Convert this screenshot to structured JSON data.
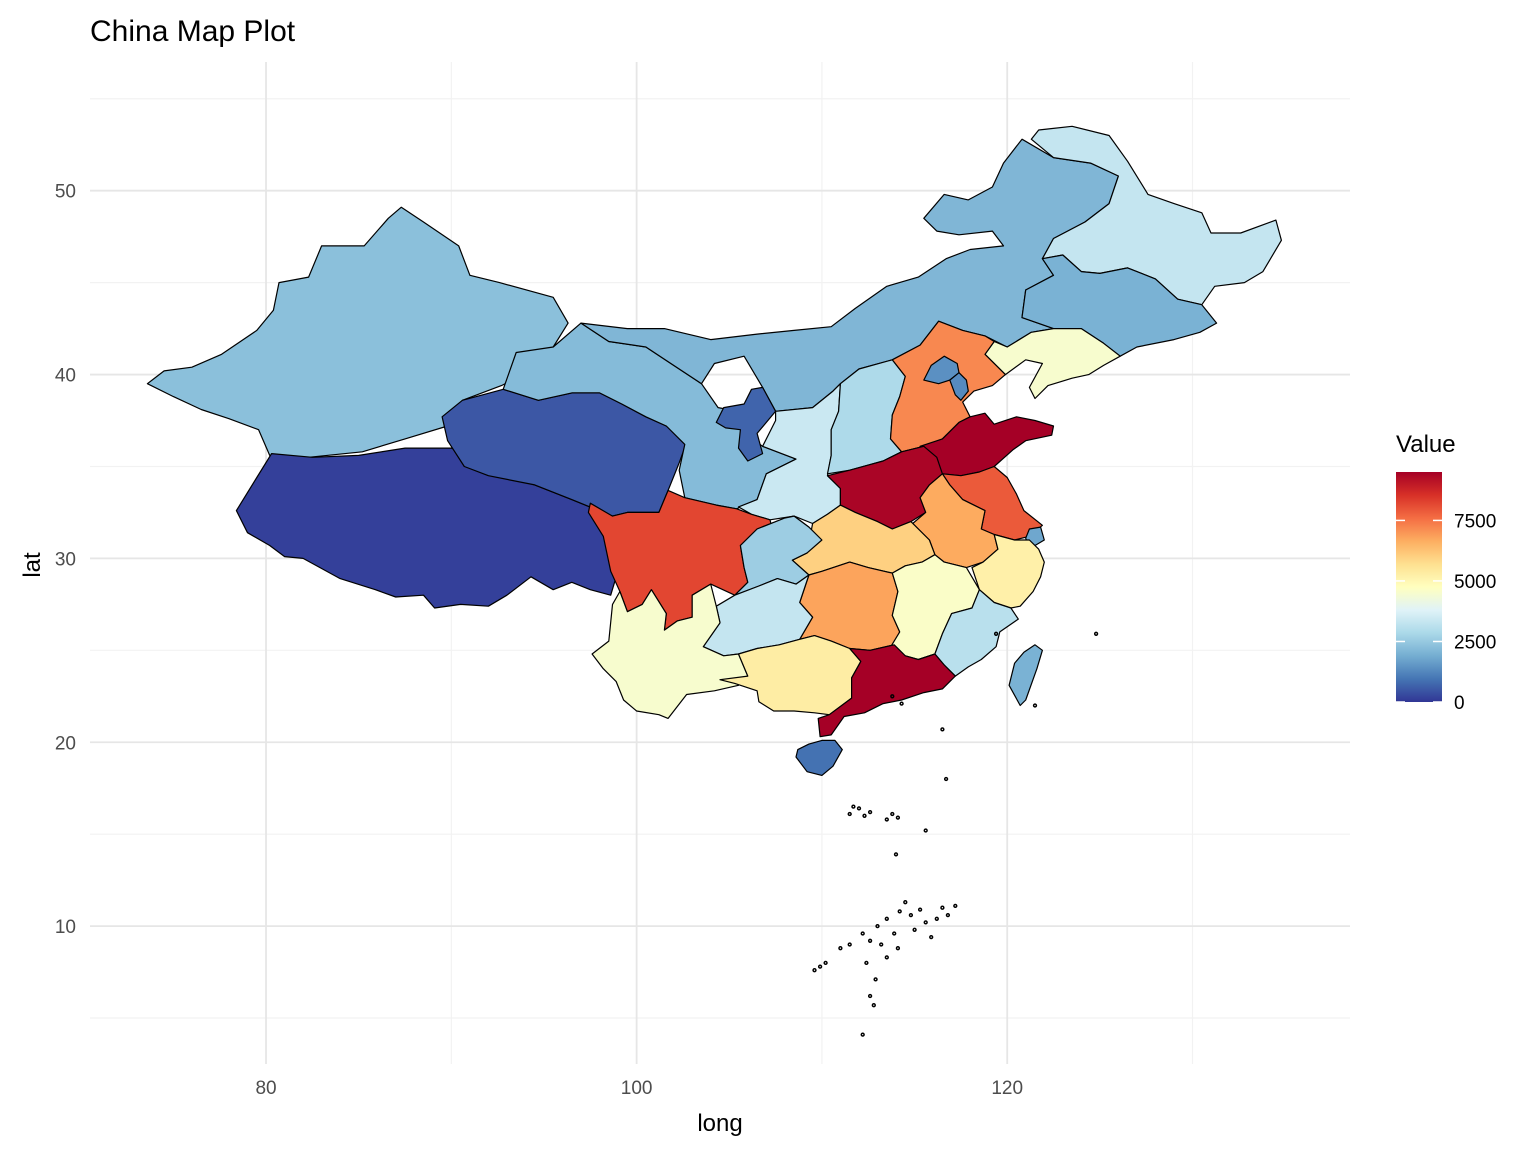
{
  "title": "China Map Plot",
  "chart_data": {
    "type": "map",
    "xlabel": "long",
    "ylabel": "lat",
    "xlim": [
      70.5,
      138.5
    ],
    "ylim": [
      2.5,
      57
    ],
    "x_ticks": [
      80,
      100,
      120
    ],
    "y_ticks": [
      10,
      20,
      30,
      40,
      50
    ],
    "x_minor": [
      90,
      110,
      130
    ],
    "y_minor": [
      5,
      15,
      25,
      35,
      45,
      55
    ],
    "grid": true,
    "legend": {
      "title": "Value",
      "position": "right",
      "min": 0,
      "max": 9500,
      "breaks": [
        0,
        2500,
        5000,
        7500
      ],
      "labels": [
        "0",
        "2500",
        "5000",
        "7500"
      ],
      "palette": [
        "#313695",
        "#4575b4",
        "#74add1",
        "#abd9e9",
        "#e0f3f8",
        "#ffffbf",
        "#fee090",
        "#fdae61",
        "#f46d43",
        "#d73027",
        "#a50026"
      ]
    },
    "regions": [
      {
        "name": "Xinjiang",
        "value": 2300
      },
      {
        "name": "Tibet",
        "value": 150
      },
      {
        "name": "Qinghai",
        "value": 500
      },
      {
        "name": "Gansu",
        "value": 2200
      },
      {
        "name": "Inner Mongolia",
        "value": 2100
      },
      {
        "name": "Heilongjiang",
        "value": 3300
      },
      {
        "name": "Jilin",
        "value": 2000
      },
      {
        "name": "Liaoning",
        "value": 4500
      },
      {
        "name": "Ningxia",
        "value": 700
      },
      {
        "name": "Shaanxi",
        "value": 3400
      },
      {
        "name": "Shanxi",
        "value": 2900
      },
      {
        "name": "Hebei",
        "value": 7200
      },
      {
        "name": "Beijing",
        "value": 1400
      },
      {
        "name": "Tianjin",
        "value": 1300
      },
      {
        "name": "Shandong",
        "value": 9500
      },
      {
        "name": "Henan",
        "value": 9400
      },
      {
        "name": "Jiangsu",
        "value": 7900
      },
      {
        "name": "Anhui",
        "value": 6700
      },
      {
        "name": "Shanghai",
        "value": 1800
      },
      {
        "name": "Zhejiang",
        "value": 5200
      },
      {
        "name": "Hubei",
        "value": 6000
      },
      {
        "name": "Sichuan",
        "value": 8200
      },
      {
        "name": "Chongqing",
        "value": 2600
      },
      {
        "name": "Hunan",
        "value": 6800
      },
      {
        "name": "Jiangxi",
        "value": 4600
      },
      {
        "name": "Fujian",
        "value": 3100
      },
      {
        "name": "Guizhou",
        "value": 3300
      },
      {
        "name": "Yunnan",
        "value": 4500
      },
      {
        "name": "Guangxi",
        "value": 5300
      },
      {
        "name": "Guangdong",
        "value": 9500
      },
      {
        "name": "Hainan",
        "value": 900
      },
      {
        "name": "Taiwan",
        "value": 2000
      }
    ]
  }
}
